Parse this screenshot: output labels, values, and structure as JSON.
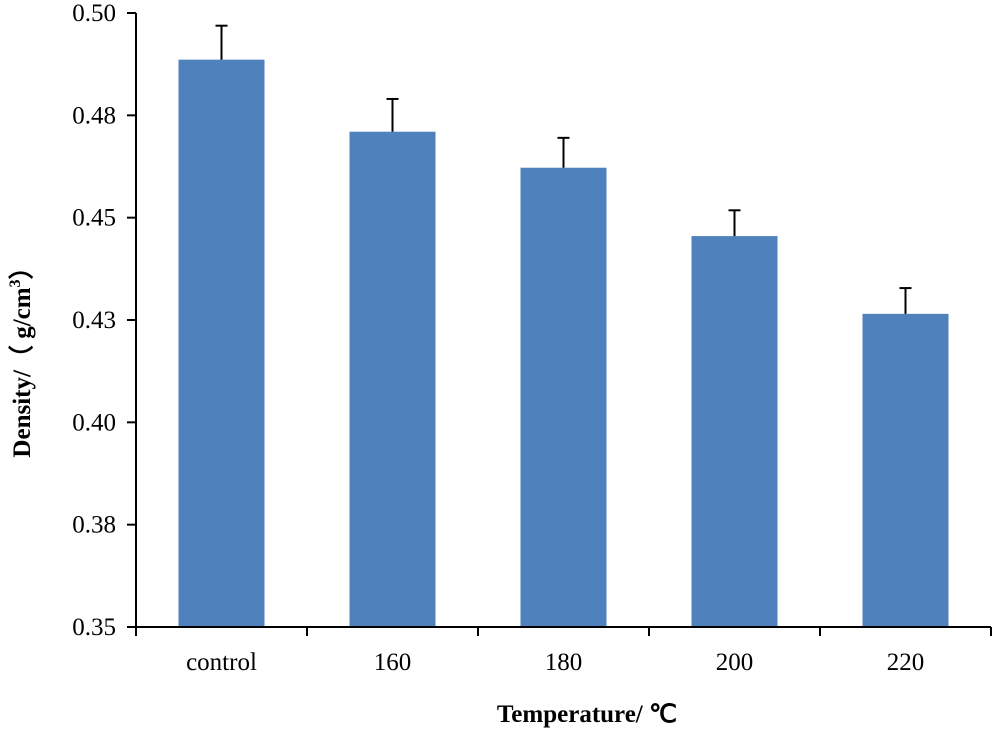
{
  "chart_data": {
    "type": "bar",
    "title": "",
    "xlabel": "Temperature/ ℃",
    "ylabel_main": "Density/（ g/cm",
    "ylabel_sup": "3",
    "ylabel_end": "）",
    "categories": [
      "control",
      "160",
      "180",
      "200",
      "220"
    ],
    "values": [
      0.4886,
      0.471,
      0.4622,
      0.4455,
      0.4265
    ],
    "errors": [
      0.0083,
      0.008,
      0.0073,
      0.0063,
      0.0063
    ],
    "ylim": [
      0.35,
      0.5
    ],
    "yticks": [
      0.35,
      0.375,
      0.4,
      0.425,
      0.45,
      0.475,
      0.5
    ],
    "ytick_labels": [
      "0.35",
      "0.38",
      "0.40",
      "0.43",
      "0.45",
      "0.48",
      "0.50"
    ],
    "bar_color": "#4f81bd",
    "grid": false,
    "legend": "none"
  }
}
